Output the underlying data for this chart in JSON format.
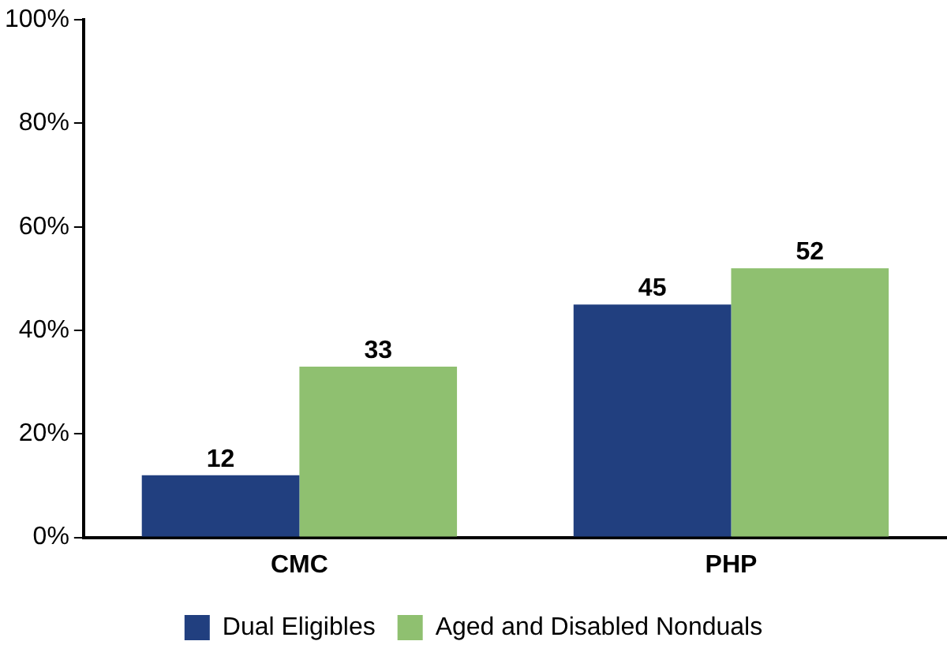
{
  "chart_data": {
    "type": "bar",
    "categories": [
      "CMC",
      "PHP"
    ],
    "series": [
      {
        "name": "Dual Eligibles",
        "color": "#213f7f",
        "values": [
          12,
          45
        ]
      },
      {
        "name": "Aged and Disabled Nonduals",
        "color": "#8fc070",
        "values": [
          33,
          52
        ]
      }
    ],
    "ylim": [
      0,
      100
    ],
    "yticks": [
      {
        "value": 0,
        "label": "0%"
      },
      {
        "value": 20,
        "label": "20%"
      },
      {
        "value": 40,
        "label": "40%"
      },
      {
        "value": 60,
        "label": "60%"
      },
      {
        "value": 80,
        "label": "80%"
      },
      {
        "value": 100,
        "label": "100%"
      }
    ],
    "grid": false,
    "legend": "bottom",
    "data_labels": true
  }
}
